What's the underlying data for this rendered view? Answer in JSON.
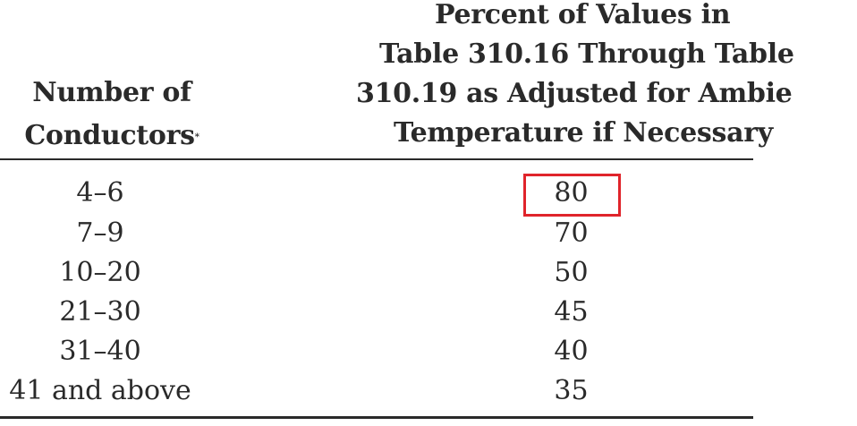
{
  "table": {
    "header": {
      "col1_line1": "Number of",
      "col1_line2": "Conductors",
      "col1_marker": "*",
      "col2_line1": "Percent of Values in",
      "col2_line2": "Table 310.16 Through Table",
      "col2_line3": "310.19 as Adjusted for Ambie",
      "col2_line4": "Temperature if Necessary"
    },
    "rows": [
      {
        "conductors": "4–6",
        "percent": "80"
      },
      {
        "conductors": "7–9",
        "percent": "70"
      },
      {
        "conductors": "10–20",
        "percent": "50"
      },
      {
        "conductors": "21–30",
        "percent": "45"
      },
      {
        "conductors": "31–40",
        "percent": "40"
      },
      {
        "conductors": "41 and above",
        "percent": "35"
      }
    ],
    "highlighted_row": 0
  },
  "colors": {
    "text": "#2a2a2a",
    "highlight": "#e0242b"
  }
}
